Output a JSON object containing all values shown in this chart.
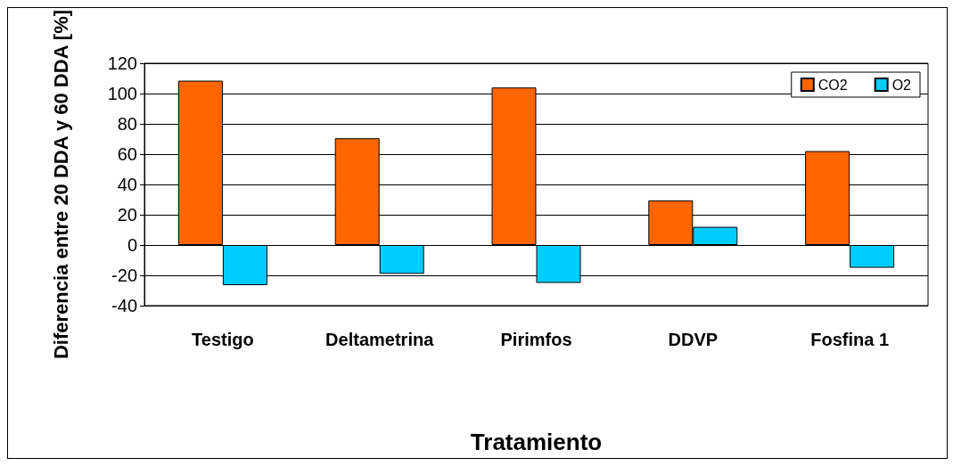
{
  "chart_data": {
    "type": "bar",
    "xlabel": "Tratamiento",
    "ylabel": "Diferencia entre 20 DDA y 60 DDA [%]",
    "categories": [
      "Testigo",
      "Deltametrina",
      "Pirimfos",
      "DDVP",
      "Fosfina 1"
    ],
    "series": [
      {
        "name": "CO2",
        "color": "#ff6600",
        "values": [
          108.5,
          70.5,
          104,
          29.5,
          62
        ]
      },
      {
        "name": "O2",
        "color": "#00ccff",
        "values": [
          -26.5,
          -19,
          -25,
          12,
          -15
        ]
      }
    ],
    "ylim": [
      -40,
      120
    ],
    "yticks": [
      -40,
      -20,
      0,
      20,
      40,
      60,
      80,
      100,
      120
    ],
    "grid": "y",
    "legend": "top right"
  }
}
